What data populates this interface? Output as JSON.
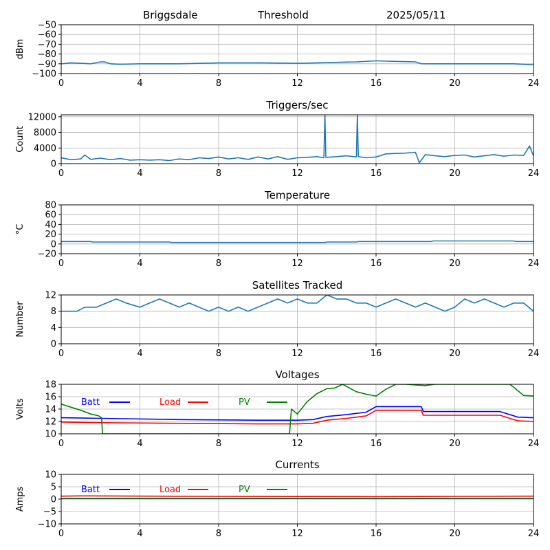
{
  "header": {
    "station": "Briggsdale",
    "mode": "Threshold",
    "date": "2025/05/11"
  },
  "colors": {
    "series": "#1f77b4",
    "grid": "#b0b0b0",
    "batt": "#0000ff",
    "load": "#ff0000",
    "pv": "#008000"
  },
  "chart_data": [
    {
      "type": "line",
      "title": "",
      "ylabel": "dBm",
      "xlabel": "",
      "xlim": [
        0,
        24
      ],
      "ylim": [
        -100,
        -50
      ],
      "xticks": [
        0,
        4,
        8,
        12,
        16,
        20,
        24
      ],
      "yticks": [
        -100,
        -90,
        -80,
        -70,
        -60,
        -50
      ],
      "grid": true,
      "series": [
        {
          "x": [
            0,
            0.5,
            1,
            1.5,
            2,
            2.2,
            2.5,
            3,
            4,
            6,
            8,
            10,
            12,
            13,
            14,
            15,
            16,
            17,
            18,
            18.3,
            19,
            20,
            22,
            23,
            24
          ],
          "y": [
            -90,
            -89,
            -89.5,
            -90,
            -88,
            -88,
            -90,
            -90.5,
            -90,
            -90,
            -89,
            -89,
            -89.5,
            -89,
            -88.5,
            -88,
            -87,
            -87.5,
            -88,
            -90,
            -90,
            -90,
            -90,
            -90,
            -91
          ]
        }
      ]
    },
    {
      "type": "line",
      "title": "Triggers/sec",
      "ylabel": "Count",
      "xlabel": "",
      "xlim": [
        0,
        24
      ],
      "ylim": [
        0,
        12500
      ],
      "xticks": [
        0,
        4,
        8,
        12,
        16,
        20,
        24
      ],
      "yticks": [
        0,
        4000,
        8000,
        12000
      ],
      "grid": true,
      "series": [
        {
          "x": [
            0,
            0.5,
            1,
            1.2,
            1.5,
            2,
            2.5,
            3,
            3.5,
            4,
            4.5,
            5,
            5.5,
            6,
            6.5,
            7,
            7.5,
            8,
            8.5,
            9,
            9.5,
            10,
            10.5,
            11,
            11.5,
            12,
            12.5,
            13,
            13.35,
            13.4,
            13.45,
            14,
            14.5,
            15,
            15.05,
            15.1,
            15.5,
            16,
            16.5,
            17,
            17.5,
            18,
            18.2,
            18.5,
            19,
            19.5,
            20,
            20.5,
            21,
            21.5,
            22,
            22.5,
            23,
            23.5,
            23.8,
            24
          ],
          "y": [
            1500,
            1000,
            1200,
            2200,
            1100,
            1400,
            1000,
            1300,
            900,
            1000,
            900,
            1000,
            800,
            1200,
            1000,
            1500,
            1300,
            1700,
            1200,
            1500,
            1100,
            1700,
            1200,
            1800,
            1100,
            1500,
            1600,
            1800,
            1500,
            12500,
            1600,
            1800,
            2000,
            1700,
            12500,
            1800,
            1500,
            1700,
            2500,
            2600,
            2700,
            2900,
            200,
            2300,
            2000,
            1800,
            2100,
            2200,
            1700,
            2000,
            2300,
            1900,
            2200,
            2100,
            4500,
            2000
          ]
        }
      ]
    },
    {
      "type": "line",
      "title": "Temperature",
      "ylabel": "°C",
      "xlabel": "",
      "xlim": [
        0,
        24
      ],
      "ylim": [
        -20,
        80
      ],
      "xticks": [
        0,
        4,
        8,
        12,
        16,
        20,
        24
      ],
      "yticks": [
        -20,
        0,
        20,
        40,
        60,
        80
      ],
      "grid": true,
      "series": [
        {
          "x": [
            0,
            1.5,
            1.6,
            5.5,
            5.6,
            13.4,
            13.5,
            15,
            15.1,
            18.8,
            18.9,
            23,
            23.1,
            24
          ],
          "y": [
            5,
            5,
            4,
            4,
            3,
            3,
            4,
            4,
            5,
            5,
            6,
            6,
            5,
            5
          ]
        }
      ]
    },
    {
      "type": "line",
      "title": "Satellites Tracked",
      "ylabel": "Number",
      "xlabel": "",
      "xlim": [
        0,
        24
      ],
      "ylim": [
        0,
        12
      ],
      "xticks": [
        0,
        4,
        8,
        12,
        16,
        20,
        24
      ],
      "yticks": [
        0,
        4,
        8,
        12
      ],
      "grid": true,
      "series": [
        {
          "x": [
            0,
            0.8,
            1.2,
            1.8,
            2.3,
            2.8,
            3.3,
            4,
            4.5,
            5,
            5.5,
            6,
            6.5,
            7,
            7.5,
            8,
            8.5,
            9,
            9.5,
            10,
            10.5,
            11,
            11.5,
            12,
            12.5,
            13,
            13.5,
            14,
            14.5,
            15,
            15.5,
            16,
            16.5,
            17,
            17.5,
            18,
            18.5,
            19,
            19.5,
            20,
            20.5,
            21,
            21.5,
            22,
            22.5,
            23,
            23.5,
            24
          ],
          "y": [
            8,
            8,
            9,
            9,
            10,
            11,
            10,
            9,
            10,
            11,
            10,
            9,
            10,
            9,
            8,
            9,
            8,
            9,
            8,
            9,
            10,
            11,
            10,
            11,
            10,
            10,
            12,
            11,
            11,
            10,
            10,
            9,
            10,
            11,
            10,
            9,
            10,
            9,
            8,
            9,
            11,
            10,
            11,
            10,
            9,
            10,
            10,
            8
          ]
        }
      ]
    },
    {
      "type": "line",
      "title": "Voltages",
      "ylabel": "Volts",
      "xlabel": "",
      "xlim": [
        0,
        24
      ],
      "ylim": [
        10,
        18
      ],
      "xticks": [
        0,
        4,
        8,
        12,
        16,
        20,
        24
      ],
      "yticks": [
        10,
        12,
        14,
        16,
        18
      ],
      "grid": true,
      "legend": "top-left",
      "series": [
        {
          "name": "Batt",
          "color": "#0000ff",
          "x": [
            0,
            2,
            6,
            10,
            12,
            12.8,
            13.5,
            14.5,
            15.5,
            16,
            18.3,
            18.4,
            22.3,
            23.2,
            24
          ],
          "y": [
            12.6,
            12.5,
            12.3,
            12.2,
            12.2,
            12.3,
            12.8,
            13.1,
            13.5,
            14.4,
            14.4,
            13.6,
            13.6,
            12.7,
            12.6
          ]
        },
        {
          "name": "Load",
          "color": "#ff0000",
          "x": [
            0,
            2,
            6,
            10,
            12,
            12.8,
            13.5,
            14.5,
            15.5,
            16,
            18.3,
            18.4,
            22.3,
            23.2,
            24
          ],
          "y": [
            11.9,
            11.8,
            11.7,
            11.6,
            11.6,
            11.7,
            12.2,
            12.5,
            12.9,
            13.8,
            13.8,
            13,
            13,
            12.1,
            12
          ],
          "label": "Load"
        },
        {
          "name": "PV",
          "color": "#008000",
          "x": [
            0,
            0.5,
            1,
            1.5,
            1.9,
            2.05,
            2.1,
            11.6,
            11.7,
            12,
            12.5,
            13,
            13.5,
            13.9,
            14.3,
            15,
            15.5,
            16,
            16.5,
            17,
            17.5,
            18,
            18.5,
            19,
            22.8,
            23,
            23.5,
            24
          ],
          "y": [
            14.8,
            14.3,
            13.8,
            13.2,
            12.9,
            12.6,
            10,
            10,
            14,
            13.2,
            15.2,
            16.5,
            17.3,
            17.4,
            18,
            16.8,
            16.4,
            16.1,
            17.2,
            18,
            18,
            17.9,
            17.8,
            18,
            18,
            17.5,
            16.2,
            16.1
          ]
        }
      ]
    },
    {
      "type": "line",
      "title": "Currents",
      "ylabel": "Amps",
      "xlabel": "",
      "xlim": [
        0,
        24
      ],
      "ylim": [
        -10,
        10
      ],
      "xticks": [
        0,
        4,
        8,
        12,
        16,
        20,
        24
      ],
      "yticks": [
        -10,
        -5,
        0,
        5,
        10
      ],
      "grid": true,
      "legend": "top-left",
      "series": [
        {
          "name": "Batt",
          "color": "#0000ff",
          "x": [
            0,
            24
          ],
          "y": [
            0.3,
            0.3
          ]
        },
        {
          "name": "Load",
          "color": "#ff0000",
          "x": [
            0,
            1,
            8,
            16,
            20,
            24
          ],
          "y": [
            1.2,
            1.3,
            1.1,
            1,
            1.1,
            1.2
          ]
        },
        {
          "name": "PV",
          "color": "#008000",
          "x": [
            0,
            24
          ],
          "y": [
            0.2,
            0.2
          ]
        }
      ]
    }
  ]
}
